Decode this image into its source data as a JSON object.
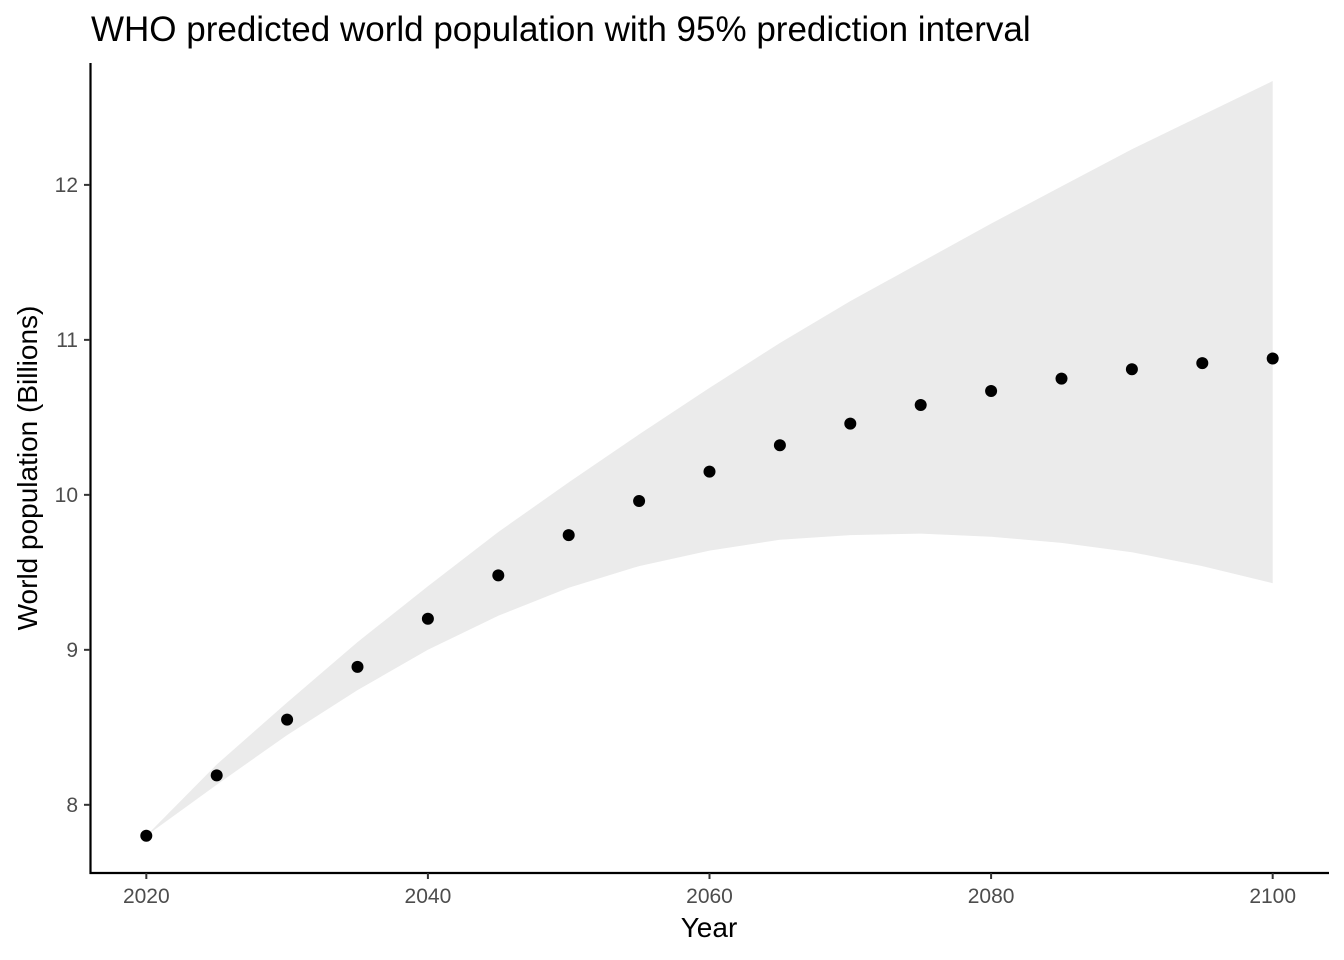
{
  "chart_data": {
    "type": "scatter",
    "title": "WHO predicted world population with 95% prediction interval",
    "xlabel": "Year",
    "ylabel": "World population (Billions)",
    "xlim": [
      2016,
      2104
    ],
    "ylim": [
      7.56,
      12.78
    ],
    "xticks": [
      2020,
      2040,
      2060,
      2080,
      2100
    ],
    "yticks": [
      8,
      9,
      10,
      11,
      12
    ],
    "grid": false,
    "point_color": "#000000",
    "band_color": "#ebebeb",
    "series": [
      {
        "x": [
          2020,
          2025,
          2030,
          2035,
          2040,
          2045,
          2050,
          2055,
          2060,
          2065,
          2070,
          2075,
          2080,
          2085,
          2090,
          2095,
          2100
        ],
        "y": [
          7.8,
          8.19,
          8.55,
          8.89,
          9.2,
          9.48,
          9.74,
          9.96,
          10.15,
          10.32,
          10.46,
          10.58,
          10.67,
          10.75,
          10.81,
          10.85,
          10.88
        ]
      }
    ],
    "interval": {
      "label": "95% prediction interval",
      "x": [
        2020,
        2025,
        2030,
        2035,
        2040,
        2045,
        2050,
        2055,
        2060,
        2065,
        2070,
        2075,
        2080,
        2085,
        2090,
        2095,
        2100
      ],
      "lower": [
        7.8,
        8.13,
        8.45,
        8.74,
        9.0,
        9.22,
        9.4,
        9.54,
        9.64,
        9.71,
        9.74,
        9.75,
        9.73,
        9.69,
        9.63,
        9.54,
        9.43
      ],
      "upper": [
        7.8,
        8.26,
        8.66,
        9.05,
        9.41,
        9.76,
        10.08,
        10.39,
        10.69,
        10.98,
        11.25,
        11.5,
        11.75,
        11.99,
        12.23,
        12.45,
        12.67
      ]
    }
  }
}
